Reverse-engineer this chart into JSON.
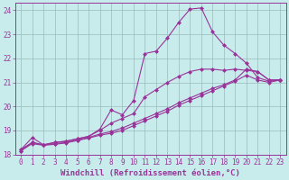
{
  "xlabel": "Windchill (Refroidissement éolien,°C)",
  "bg_color": "#c8ecec",
  "line_color": "#993399",
  "grid_color": "#99bbbb",
  "axis_color": "#993399",
  "tick_color": "#993399",
  "xlim": [
    -0.5,
    23.5
  ],
  "ylim": [
    18,
    24.3
  ],
  "xticks": [
    0,
    1,
    2,
    3,
    4,
    5,
    6,
    7,
    8,
    9,
    10,
    11,
    12,
    13,
    14,
    15,
    16,
    17,
    18,
    19,
    20,
    21,
    22,
    23
  ],
  "yticks": [
    18,
    19,
    20,
    21,
    22,
    23,
    24
  ],
  "line1_x": [
    0,
    1,
    2,
    3,
    4,
    5,
    6,
    7,
    8,
    9,
    10,
    11,
    12,
    13,
    14,
    15,
    16,
    17,
    18,
    19,
    20,
    21,
    22,
    23
  ],
  "line1_y": [
    18.2,
    18.7,
    18.4,
    18.5,
    18.55,
    18.65,
    18.75,
    19.05,
    19.85,
    19.65,
    20.25,
    22.2,
    22.3,
    22.85,
    23.5,
    24.05,
    24.1,
    23.1,
    22.55,
    22.2,
    21.8,
    21.2,
    21.05,
    21.1
  ],
  "line2_x": [
    0,
    1,
    2,
    3,
    4,
    5,
    6,
    7,
    8,
    9,
    10,
    11,
    12,
    13,
    14,
    15,
    16,
    17,
    18,
    19,
    20,
    21,
    22,
    23
  ],
  "line2_y": [
    18.2,
    18.5,
    18.4,
    18.5,
    18.55,
    18.65,
    18.75,
    19.0,
    19.3,
    19.5,
    19.7,
    20.4,
    20.7,
    21.0,
    21.25,
    21.45,
    21.55,
    21.55,
    21.5,
    21.55,
    21.5,
    21.45,
    21.1,
    21.1
  ],
  "line3_x": [
    0,
    1,
    2,
    3,
    4,
    5,
    6,
    7,
    8,
    9,
    10,
    11,
    12,
    13,
    14,
    15,
    16,
    17,
    18,
    19,
    20,
    21,
    22,
    23
  ],
  "line3_y": [
    18.15,
    18.5,
    18.4,
    18.45,
    18.5,
    18.6,
    18.7,
    18.85,
    18.95,
    19.1,
    19.3,
    19.5,
    19.7,
    19.9,
    20.15,
    20.35,
    20.55,
    20.75,
    20.9,
    21.1,
    21.55,
    21.45,
    21.1,
    21.1
  ],
  "line4_x": [
    0,
    1,
    2,
    3,
    4,
    5,
    6,
    7,
    8,
    9,
    10,
    11,
    12,
    13,
    14,
    15,
    16,
    17,
    18,
    19,
    20,
    21,
    22,
    23
  ],
  "line4_y": [
    18.15,
    18.45,
    18.38,
    18.42,
    18.48,
    18.58,
    18.68,
    18.8,
    18.88,
    19.0,
    19.2,
    19.4,
    19.6,
    19.8,
    20.05,
    20.25,
    20.45,
    20.65,
    20.85,
    21.05,
    21.3,
    21.1,
    21.0,
    21.1
  ],
  "marker": "D",
  "markersize": 2.5,
  "linewidth": 0.8,
  "xlabel_fontsize": 6.5,
  "tick_fontsize": 5.5
}
